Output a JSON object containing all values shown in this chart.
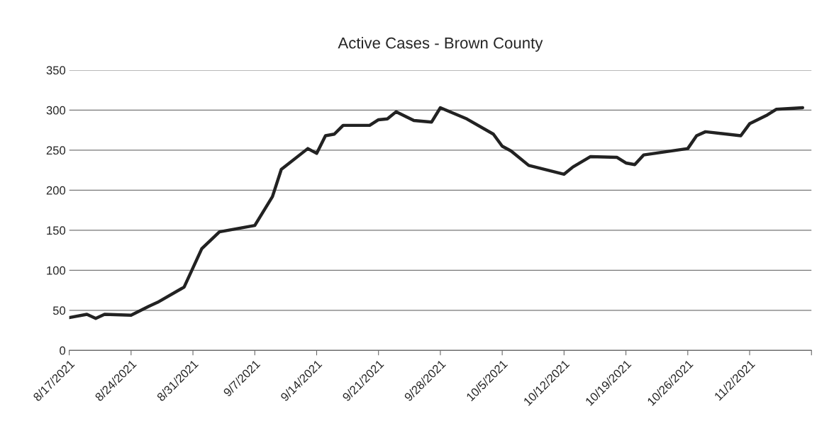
{
  "chart_data": {
    "type": "line",
    "title": "Active Cases - Brown County",
    "x": [
      "2021-08-17",
      "2021-08-19",
      "2021-08-20",
      "2021-08-21",
      "2021-08-24",
      "2021-08-26",
      "2021-08-27",
      "2021-08-30",
      "2021-09-01",
      "2021-09-03",
      "2021-09-07",
      "2021-09-09",
      "2021-09-10",
      "2021-09-13",
      "2021-09-14",
      "2021-09-15",
      "2021-09-16",
      "2021-09-17",
      "2021-09-20",
      "2021-09-21",
      "2021-09-22",
      "2021-09-23",
      "2021-09-25",
      "2021-09-27",
      "2021-09-28",
      "2021-10-01",
      "2021-10-04",
      "2021-10-05",
      "2021-10-06",
      "2021-10-08",
      "2021-10-12",
      "2021-10-13",
      "2021-10-15",
      "2021-10-18",
      "2021-10-19",
      "2021-10-20",
      "2021-10-21",
      "2021-10-26",
      "2021-10-27",
      "2021-10-28",
      "2021-11-01",
      "2021-11-02",
      "2021-11-04",
      "2021-11-05",
      "2021-11-08"
    ],
    "series": [
      {
        "color": "#222222",
        "values": [
          41,
          45,
          40,
          45,
          44,
          55,
          60,
          79,
          127,
          148,
          156,
          192,
          226,
          252,
          246,
          268,
          270,
          281,
          281,
          288,
          289,
          298,
          287,
          285,
          303,
          289,
          270,
          255,
          249,
          231,
          220,
          229,
          242,
          241,
          234,
          232,
          244,
          252,
          268,
          273,
          268,
          283,
          294,
          301,
          303
        ]
      }
    ],
    "xlim": [
      "2021-08-17",
      "2021-11-09"
    ],
    "xticks": [
      {
        "value": "2021-08-17",
        "label": "8/17/2021"
      },
      {
        "value": "2021-08-24",
        "label": "8/24/2021"
      },
      {
        "value": "2021-08-31",
        "label": "8/31/2021"
      },
      {
        "value": "2021-09-07",
        "label": "9/7/2021"
      },
      {
        "value": "2021-09-14",
        "label": "9/14/2021"
      },
      {
        "value": "2021-09-21",
        "label": "9/21/2021"
      },
      {
        "value": "2021-09-28",
        "label": "9/28/2021"
      },
      {
        "value": "2021-10-05",
        "label": "10/5/2021"
      },
      {
        "value": "2021-10-12",
        "label": "10/12/2021"
      },
      {
        "value": "2021-10-19",
        "label": "10/19/2021"
      },
      {
        "value": "2021-10-26",
        "label": "10/26/2021"
      },
      {
        "value": "2021-11-02",
        "label": "11/2/2021"
      },
      {
        "value": "2021-11-09",
        "label": null
      }
    ],
    "ylim": [
      0,
      350
    ],
    "yticks": [
      0,
      50,
      100,
      150,
      200,
      250,
      300,
      350
    ],
    "grid": "y",
    "marker": "none",
    "line_style": "solid"
  }
}
